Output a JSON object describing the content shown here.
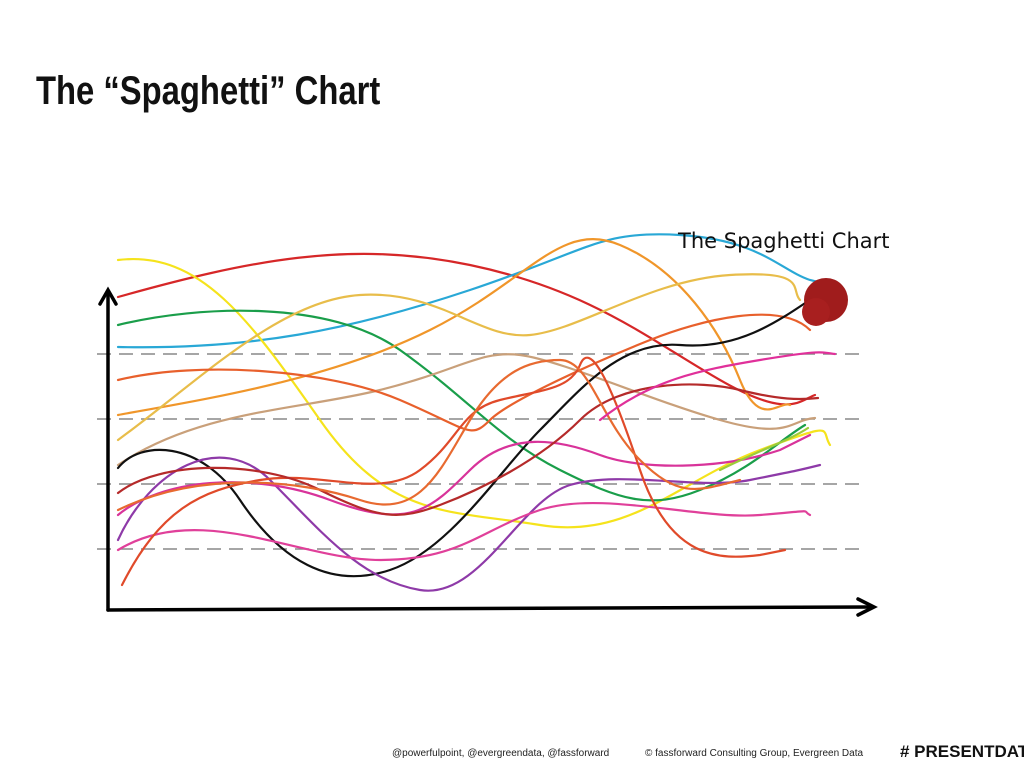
{
  "slide": {
    "title": "The “Spaghetti” Chart",
    "annotation": "The Spaghetti Chart",
    "footer": {
      "handles": "@powerfulpoint, @evergreendata, @fassforward",
      "copyright": "© fassforward Consulting Group, Evergreen Data",
      "hashtag": "# PRESENTDATA"
    }
  }
}
